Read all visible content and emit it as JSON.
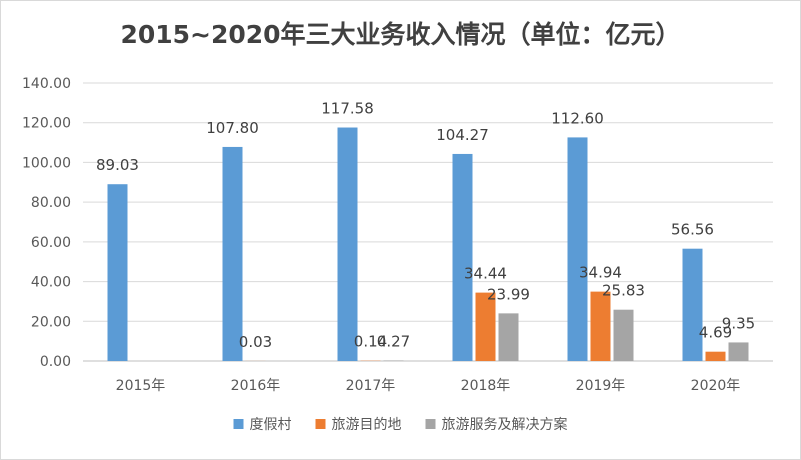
{
  "chart_data": {
    "type": "bar",
    "title": "2015~2020年三大业务收入情况（单位：亿元）",
    "categories": [
      "2015年",
      "2016年",
      "2017年",
      "2018年",
      "2019年",
      "2020年"
    ],
    "series": [
      {
        "name": "度假村",
        "color": "#5b9bd5",
        "values": [
          89.03,
          107.8,
          117.58,
          104.27,
          112.6,
          56.56
        ],
        "labels": [
          "89.03",
          "107.80",
          "117.58",
          "104.27",
          "112.60",
          "56.56"
        ]
      },
      {
        "name": "旅游目的地",
        "color": "#ed7d31",
        "values": [
          null,
          0.03,
          0.14,
          34.44,
          34.94,
          4.69
        ],
        "labels": [
          "",
          "0.03",
          "0.14",
          "34.44",
          "34.94",
          "4.69"
        ]
      },
      {
        "name": "旅游服务及解决方案",
        "color": "#a5a5a5",
        "values": [
          null,
          null,
          0.27,
          23.99,
          25.83,
          9.35
        ],
        "labels": [
          "",
          "",
          "0.27",
          "23.99",
          "25.83",
          "9.35"
        ]
      }
    ],
    "y_ticks": [
      "0.00",
      "20.00",
      "40.00",
      "60.00",
      "80.00",
      "100.00",
      "120.00",
      "140.00"
    ],
    "ylim": [
      0,
      140
    ],
    "grid": true,
    "legend_position": "bottom"
  }
}
